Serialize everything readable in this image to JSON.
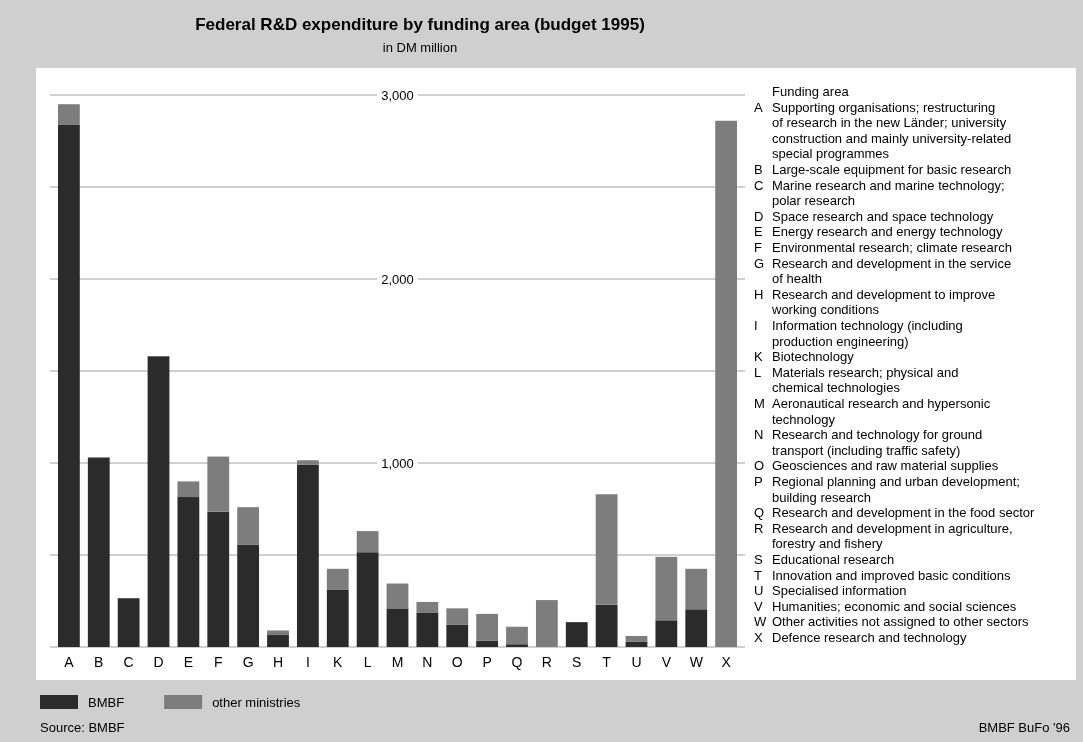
{
  "chart_data": {
    "type": "bar",
    "title": "Federal R&D expenditure by funding area (budget 1995)",
    "subtitle": "in DM million",
    "categories": [
      "A",
      "B",
      "C",
      "D",
      "E",
      "F",
      "G",
      "H",
      "I",
      "K",
      "L",
      "M",
      "N",
      "O",
      "P",
      "Q",
      "R",
      "S",
      "T",
      "U",
      "V",
      "W",
      "X"
    ],
    "stacked": true,
    "series": [
      {
        "name": "BMBF",
        "color": "#2b2b2b",
        "values": [
          2840,
          1030,
          265,
          1580,
          815,
          735,
          555,
          65,
          990,
          310,
          515,
          210,
          185,
          120,
          35,
          15,
          0,
          135,
          230,
          30,
          145,
          205,
          0
        ]
      },
      {
        "name": "other ministries",
        "color": "#7d7d7d",
        "values": [
          110,
          0,
          0,
          0,
          85,
          300,
          205,
          25,
          25,
          115,
          115,
          135,
          60,
          90,
          145,
          95,
          255,
          0,
          600,
          30,
          345,
          220,
          2860
        ]
      }
    ],
    "ylim": [
      0,
      3000
    ],
    "yticks": [
      {
        "value": 0,
        "label": null
      },
      {
        "value": 500,
        "label": null
      },
      {
        "value": 1000,
        "label": "1,000"
      },
      {
        "value": 1500,
        "label": null
      },
      {
        "value": 2000,
        "label": "2,000"
      },
      {
        "value": 2500,
        "label": null
      },
      {
        "value": 3000,
        "label": "3,000"
      }
    ],
    "grid": "y",
    "legend": "bottom left",
    "annotations": [
      "Source: BMBF",
      "BMBF BuFo '96",
      "Funding area",
      "A Supporting organisations; restructuring\nof research in the new Länder; university\nconstruction and mainly university-related\nspecial programmes",
      "B Large-scale equipment for basic research",
      "C Marine research and marine technology;\npolar research",
      "D Space research and space technology",
      "E Energy research and energy technology",
      "F Environmental research; climate research",
      "G Research and development in the service\nof health",
      "H Research and development to improve\nworking conditions",
      "I Information technology (including\nproduction engineering)",
      "K Biotechnology",
      "L Materials research; physical and\nchemical technologies",
      "M Aeronautical research and hypersonic\ntechnology",
      "N Research and technology for ground\ntransport (including traffic safety)",
      "O Geosciences and raw material supplies",
      "P Regional planning and urban development;\nbuilding research",
      "Q Research and development in the food sector",
      "R Research and development in agriculture,\nforestry and fishery",
      "S Educational research",
      "T Innovation and improved basic conditions",
      "U Specialised information",
      "V Humanities; economic and social sciences",
      "W Other activities not assigned to other sectors",
      "X Defence research and technology"
    ]
  }
}
